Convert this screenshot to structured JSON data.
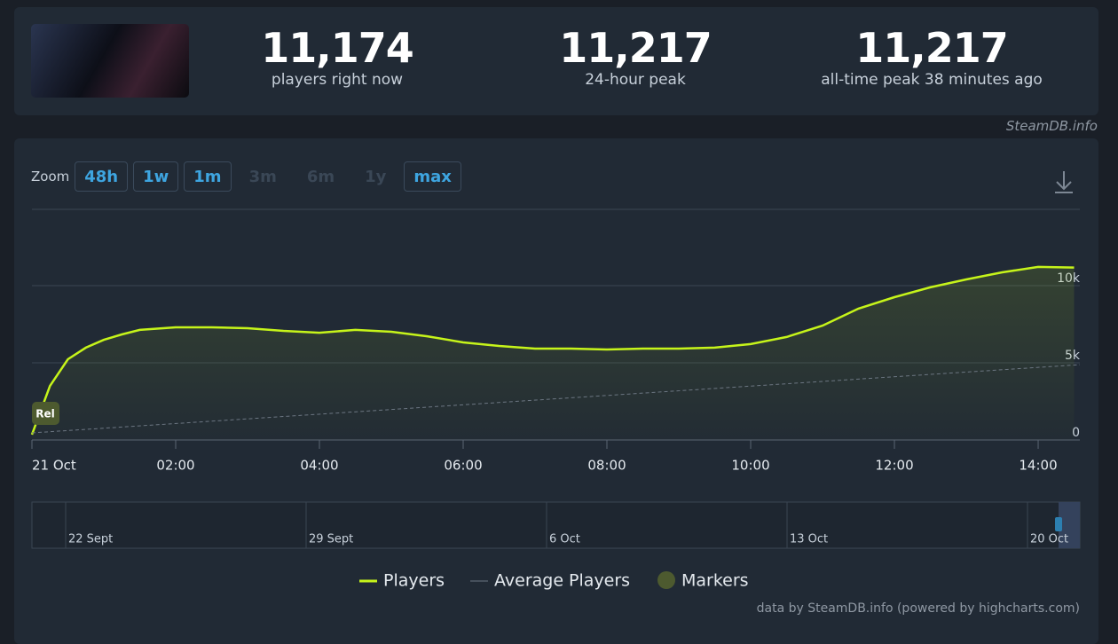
{
  "stats": [
    {
      "value": "11,174",
      "label": "players right now"
    },
    {
      "value": "11,217",
      "label": "24-hour peak"
    },
    {
      "value": "11,217",
      "label": "all-time peak 38 minutes ago"
    }
  ],
  "watermark": "SteamDB.info",
  "zoom": {
    "label": "Zoom",
    "buttons": [
      "48h",
      "1w",
      "1m",
      "3m",
      "6m",
      "1y",
      "max"
    ],
    "enabled": [
      true,
      true,
      true,
      false,
      false,
      false,
      true
    ]
  },
  "chart_data": {
    "type": "line",
    "x": [
      0,
      0.25,
      0.5,
      0.75,
      1,
      1.25,
      1.5,
      2,
      2.5,
      3,
      3.5,
      4,
      4.5,
      5,
      5.5,
      6,
      6.5,
      7,
      7.5,
      8,
      8.5,
      9,
      9.5,
      10,
      10.5,
      11,
      11.5,
      12,
      12.5,
      13,
      13.5,
      14,
      14.5
    ],
    "series": [
      {
        "name": "Players",
        "color": "#c6f41a",
        "values": [
          350,
          3500,
          5230,
          5980,
          6490,
          6840,
          7130,
          7300,
          7300,
          7240,
          7070,
          6950,
          7130,
          7010,
          6720,
          6320,
          6090,
          5920,
          5920,
          5860,
          5920,
          5920,
          5980,
          6210,
          6670,
          7410,
          8510,
          9250,
          9890,
          10400,
          10860,
          11210,
          11174
        ]
      },
      {
        "name": "Average Players",
        "color": "#6c7682",
        "x": [
          0,
          14.58
        ],
        "values": [
          460,
          4880
        ]
      },
      {
        "name": "Markers",
        "color": "#4d5a2f"
      }
    ],
    "markers": [
      {
        "label": "Rel",
        "x": 0
      }
    ],
    "xlim": [
      0,
      14.58
    ],
    "xticks": [
      {
        "value": 0,
        "label": "21 Oct"
      },
      {
        "value": 2,
        "label": "02:00"
      },
      {
        "value": 4,
        "label": "04:00"
      },
      {
        "value": 6,
        "label": "06:00"
      },
      {
        "value": 8,
        "label": "08:00"
      },
      {
        "value": 10,
        "label": "10:00"
      },
      {
        "value": 12,
        "label": "12:00"
      },
      {
        "value": 14,
        "label": "14:00"
      }
    ],
    "ylim": [
      0,
      15000
    ],
    "yticks": [
      0,
      {
        "value": 5000,
        "label": "5k"
      },
      {
        "value": 10000,
        "label": "10k"
      }
    ],
    "grid": true,
    "navigator_ticks": [
      "22 Sept",
      "29 Sept",
      "6 Oct",
      "13 Oct",
      "20 Oct"
    ],
    "credits": "data by SteamDB.info (powered by highcharts.com)"
  }
}
